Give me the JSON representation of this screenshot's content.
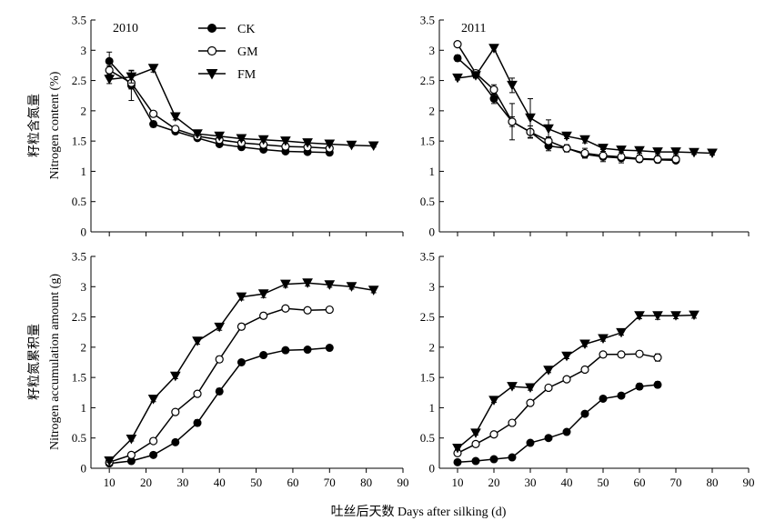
{
  "figure": {
    "xlabel": "吐丝后天数 Days after silking (d)",
    "ylabel_top_cn": "籽粒含氮量",
    "ylabel_top_en": "Nitrogen content (%)",
    "ylabel_bottom_cn": "籽粒氮累积量",
    "ylabel_bottom_en": "Nitrogen accumulation amount (g)",
    "legend": [
      "CK",
      "GM",
      "FM"
    ]
  },
  "chart_data": [
    {
      "type": "line",
      "panel": "top-left",
      "title": "2010",
      "xlim": [
        5,
        90
      ],
      "ylim": [
        0,
        3.5
      ],
      "xticks": [
        10,
        20,
        30,
        40,
        50,
        60,
        70,
        80,
        90
      ],
      "yticks": [
        0,
        0.5,
        1.0,
        1.5,
        2.0,
        2.5,
        3.0,
        3.5
      ],
      "tick_labels_x": false,
      "series": [
        {
          "name": "CK",
          "x": [
            10,
            16,
            22,
            28,
            34,
            40,
            46,
            52,
            58,
            64,
            70
          ],
          "y": [
            2.82,
            2.42,
            1.78,
            1.66,
            1.55,
            1.45,
            1.4,
            1.36,
            1.33,
            1.32,
            1.31
          ],
          "err": [
            0.15,
            0.25,
            0.05,
            0.04,
            0.03,
            0.03,
            0.03,
            0.03,
            0.02,
            0.02,
            0.02
          ]
        },
        {
          "name": "GM",
          "x": [
            10,
            16,
            22,
            28,
            34,
            40,
            46,
            52,
            58,
            64,
            70
          ],
          "y": [
            2.67,
            2.46,
            1.95,
            1.7,
            1.58,
            1.52,
            1.47,
            1.44,
            1.41,
            1.4,
            1.38
          ],
          "err": [
            0.07,
            0.1,
            0.04,
            0.03,
            0.03,
            0.03,
            0.02,
            0.02,
            0.02,
            0.02,
            0.02
          ]
        },
        {
          "name": "FM",
          "x": [
            10,
            16,
            22,
            28,
            34,
            40,
            46,
            52,
            58,
            64,
            70,
            76,
            82
          ],
          "y": [
            2.52,
            2.56,
            2.7,
            1.9,
            1.62,
            1.58,
            1.54,
            1.52,
            1.5,
            1.47,
            1.45,
            1.43,
            1.42
          ],
          "err": [
            0.07,
            0.1,
            0.06,
            0.05,
            0.03,
            0.03,
            0.03,
            0.03,
            0.03,
            0.03,
            0.02,
            0.02,
            0.02
          ]
        }
      ]
    },
    {
      "type": "line",
      "panel": "top-right",
      "title": "2011",
      "xlim": [
        5,
        90
      ],
      "ylim": [
        0,
        3.5
      ],
      "xticks": [
        10,
        20,
        30,
        40,
        50,
        60,
        70,
        80,
        90
      ],
      "yticks": [
        0,
        0.5,
        1.0,
        1.5,
        2.0,
        2.5,
        3.0,
        3.5
      ],
      "tick_labels_x": false,
      "series": [
        {
          "name": "CK",
          "x": [
            10,
            15,
            20,
            25,
            30,
            35,
            40,
            45,
            50,
            55,
            60,
            65,
            70
          ],
          "y": [
            2.87,
            2.6,
            2.2,
            1.82,
            1.65,
            1.42,
            1.38,
            1.28,
            1.24,
            1.22,
            1.2,
            1.19,
            1.18
          ],
          "err": [
            0.05,
            0.05,
            0.08,
            0.3,
            0.1,
            0.08,
            0.06,
            0.06,
            0.05,
            0.05,
            0.05,
            0.04,
            0.04
          ]
        },
        {
          "name": "GM",
          "x": [
            10,
            15,
            20,
            25,
            30,
            35,
            40,
            45,
            50,
            55,
            60,
            65,
            70
          ],
          "y": [
            3.1,
            2.62,
            2.35,
            1.82,
            1.65,
            1.5,
            1.38,
            1.3,
            1.26,
            1.24,
            1.21,
            1.2,
            1.2
          ],
          "err": [
            0.04,
            0.05,
            0.08,
            0.08,
            0.1,
            0.07,
            0.05,
            0.08,
            0.1,
            0.1,
            0.06,
            0.06,
            0.06
          ]
        },
        {
          "name": "FM",
          "x": [
            10,
            15,
            20,
            25,
            30,
            35,
            40,
            45,
            50,
            55,
            60,
            65,
            70,
            75,
            80
          ],
          "y": [
            2.54,
            2.58,
            3.03,
            2.42,
            1.88,
            1.7,
            1.58,
            1.52,
            1.38,
            1.35,
            1.34,
            1.32,
            1.32,
            1.31,
            1.3
          ],
          "err": [
            0.03,
            0.04,
            0.04,
            0.12,
            0.32,
            0.15,
            0.04,
            0.05,
            0.05,
            0.04,
            0.04,
            0.03,
            0.03,
            0.03,
            0.03
          ]
        }
      ]
    },
    {
      "type": "line",
      "panel": "bottom-left",
      "xlim": [
        5,
        90
      ],
      "ylim": [
        0,
        3.5
      ],
      "xticks": [
        10,
        20,
        30,
        40,
        50,
        60,
        70,
        80,
        90
      ],
      "yticks": [
        0,
        0.5,
        1.0,
        1.5,
        2.0,
        2.5,
        3.0,
        3.5
      ],
      "tick_labels_x": true,
      "series": [
        {
          "name": "CK",
          "x": [
            10,
            16,
            22,
            28,
            34,
            40,
            46,
            52,
            58,
            64,
            70
          ],
          "y": [
            0.08,
            0.12,
            0.22,
            0.43,
            0.75,
            1.27,
            1.75,
            1.87,
            1.95,
            1.96,
            1.99
          ],
          "err": [
            0.02,
            0.02,
            0.03,
            0.04,
            0.05,
            0.05,
            0.04,
            0.04,
            0.04,
            0.04,
            0.04
          ]
        },
        {
          "name": "GM",
          "x": [
            10,
            16,
            22,
            28,
            34,
            40,
            46,
            52,
            58,
            64,
            70
          ],
          "y": [
            0.1,
            0.22,
            0.45,
            0.93,
            1.23,
            1.8,
            2.34,
            2.52,
            2.64,
            2.61,
            2.62
          ],
          "err": [
            0.02,
            0.03,
            0.03,
            0.04,
            0.04,
            0.05,
            0.05,
            0.05,
            0.04,
            0.04,
            0.04
          ]
        },
        {
          "name": "FM",
          "x": [
            10,
            16,
            22,
            28,
            34,
            40,
            46,
            52,
            58,
            64,
            70,
            76,
            82
          ],
          "y": [
            0.12,
            0.48,
            1.14,
            1.52,
            2.1,
            2.33,
            2.83,
            2.88,
            3.04,
            3.06,
            3.03,
            3.0,
            2.94
          ],
          "err": [
            0.02,
            0.03,
            0.04,
            0.04,
            0.05,
            0.05,
            0.05,
            0.06,
            0.05,
            0.05,
            0.04,
            0.04,
            0.04
          ]
        }
      ]
    },
    {
      "type": "line",
      "panel": "bottom-right",
      "xlim": [
        5,
        90
      ],
      "ylim": [
        0,
        3.5
      ],
      "xticks": [
        10,
        20,
        30,
        40,
        50,
        60,
        70,
        80,
        90
      ],
      "yticks": [
        0,
        0.5,
        1.0,
        1.5,
        2.0,
        2.5,
        3.0,
        3.5
      ],
      "tick_labels_x": true,
      "series": [
        {
          "name": "CK",
          "x": [
            10,
            15,
            20,
            25,
            30,
            35,
            40,
            45,
            50,
            55,
            60,
            65
          ],
          "y": [
            0.1,
            0.12,
            0.15,
            0.18,
            0.42,
            0.5,
            0.6,
            0.9,
            1.15,
            1.2,
            1.35,
            1.38
          ],
          "err": [
            0.02,
            0.02,
            0.02,
            0.02,
            0.04,
            0.03,
            0.03,
            0.03,
            0.03,
            0.04,
            0.05,
            0.05
          ]
        },
        {
          "name": "GM",
          "x": [
            10,
            15,
            20,
            25,
            30,
            35,
            40,
            45,
            50,
            55,
            60,
            65
          ],
          "y": [
            0.25,
            0.4,
            0.56,
            0.75,
            1.08,
            1.33,
            1.47,
            1.63,
            1.88,
            1.88,
            1.89,
            1.83
          ],
          "err": [
            0.02,
            0.02,
            0.03,
            0.03,
            0.03,
            0.03,
            0.04,
            0.04,
            0.04,
            0.04,
            0.04,
            0.06
          ]
        },
        {
          "name": "FM",
          "x": [
            10,
            15,
            20,
            25,
            30,
            35,
            40,
            45,
            50,
            55,
            60,
            65,
            70,
            75
          ],
          "y": [
            0.33,
            0.58,
            1.12,
            1.35,
            1.33,
            1.62,
            1.85,
            2.05,
            2.14,
            2.24,
            2.52,
            2.52,
            2.52,
            2.53
          ],
          "err": [
            0.02,
            0.03,
            0.03,
            0.03,
            0.04,
            0.04,
            0.04,
            0.04,
            0.04,
            0.04,
            0.05,
            0.06,
            0.05,
            0.05
          ]
        }
      ]
    }
  ]
}
